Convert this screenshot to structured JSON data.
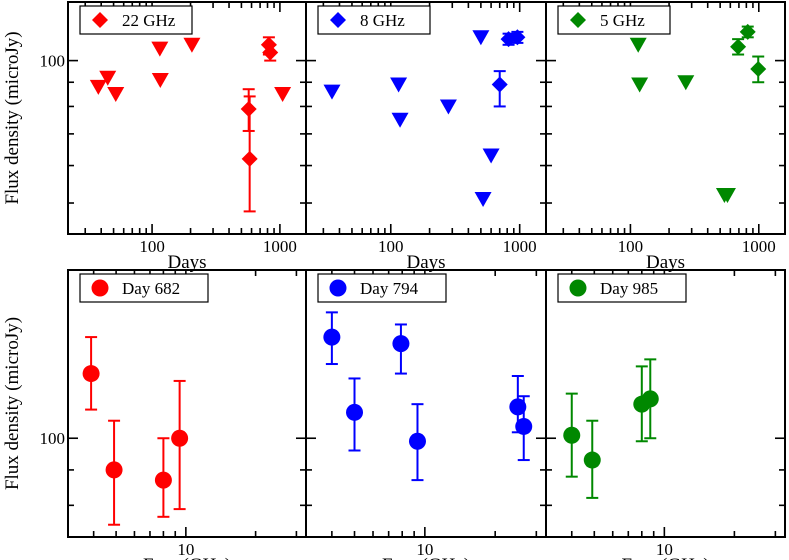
{
  "chart_data": [
    {
      "type": "scatter",
      "xscale": "log",
      "yscale": "log",
      "xlim": [
        22,
        1600
      ],
      "ylim": [
        43,
        133
      ],
      "xlabel": "Days",
      "ylabel": "Flux density (microJy)",
      "xticks": [
        100,
        1000
      ],
      "xtick_labels": [
        "100",
        "1000"
      ],
      "yticks": [
        100
      ],
      "ytick_labels": [
        "100"
      ],
      "legend": "22 GHz",
      "color": "#ff0000",
      "upper_limits": [
        [
          38,
          88
        ],
        [
          45,
          92
        ],
        [
          52,
          85
        ],
        [
          115,
          106
        ],
        [
          116,
          91
        ],
        [
          205,
          108
        ],
        [
          1050,
          85
        ]
      ],
      "detections": [
        [
          570,
          79,
          87,
          71
        ],
        [
          580,
          62,
          84,
          48
        ],
        [
          820,
          108,
          112,
          103
        ],
        [
          840,
          104,
          108,
          100
        ]
      ]
    },
    {
      "type": "scatter",
      "xscale": "log",
      "yscale": "log",
      "xlim": [
        22,
        1600
      ],
      "ylim": [
        43,
        133
      ],
      "xlabel": "Days",
      "ylabel": "",
      "xticks": [
        100,
        1000
      ],
      "xtick_labels": [
        "100",
        "1000"
      ],
      "yticks": [
        100
      ],
      "ytick_labels": [
        ""
      ],
      "legend": "8 GHz",
      "color": "#0000ff",
      "upper_limits": [
        [
          35,
          86
        ],
        [
          115,
          89
        ],
        [
          118,
          75
        ],
        [
          280,
          80
        ],
        [
          500,
          112
        ],
        [
          520,
          51
        ],
        [
          600,
          63
        ]
      ],
      "detections": [
        [
          700,
          89,
          95,
          80
        ],
        [
          820,
          111,
          114,
          108
        ],
        [
          960,
          112,
          115,
          109
        ]
      ]
    },
    {
      "type": "scatter",
      "xscale": "log",
      "yscale": "log",
      "xlim": [
        22,
        1600
      ],
      "ylim": [
        43,
        133
      ],
      "xlabel": "Days",
      "ylabel": "",
      "xticks": [
        100,
        1000
      ],
      "xtick_labels": [
        "100",
        "1000"
      ],
      "yticks": [
        100
      ],
      "ytick_labels": [
        ""
      ],
      "legend": "5 GHz",
      "color": "#008800",
      "upper_limits": [
        [
          115,
          108
        ],
        [
          118,
          89
        ],
        [
          270,
          90
        ],
        [
          540,
          52
        ],
        [
          570,
          52
        ]
      ],
      "detections": [
        [
          690,
          107,
          111,
          103
        ],
        [
          820,
          115,
          118,
          112
        ],
        [
          990,
          96,
          102,
          90
        ]
      ]
    },
    {
      "type": "scatter",
      "xscale": "log",
      "yscale": "log",
      "xlim": [
        3.1,
        33
      ],
      "ylim": [
        72,
        175
      ],
      "xlabel": "Freq (GHz)",
      "ylabel": "Flux density (microJy)",
      "xticks": [
        10
      ],
      "xtick_labels": [
        "10"
      ],
      "yticks": [
        100
      ],
      "ytick_labels": [
        "100"
      ],
      "legend": "Day 682",
      "color": "#ff0000",
      "detections": [
        [
          3.9,
          124,
          140,
          110
        ],
        [
          4.9,
          90,
          106,
          75
        ],
        [
          8.0,
          87,
          100,
          77
        ],
        [
          9.4,
          100,
          121,
          79
        ]
      ]
    },
    {
      "type": "scatter",
      "xscale": "log",
      "yscale": "log",
      "xlim": [
        3.1,
        33
      ],
      "ylim": [
        72,
        175
      ],
      "xlabel": "Freq (GHz)",
      "ylabel": "",
      "xticks": [
        10
      ],
      "xtick_labels": [
        "10"
      ],
      "yticks": [
        100
      ],
      "ytick_labels": [
        ""
      ],
      "legend": "Day 794",
      "color": "#0000ff",
      "detections": [
        [
          4.0,
          140,
          152,
          128
        ],
        [
          5.0,
          109,
          122,
          96
        ],
        [
          7.9,
          137,
          146,
          124
        ],
        [
          9.3,
          99,
          112,
          87
        ],
        [
          25.0,
          111,
          123,
          102
        ],
        [
          26.5,
          104,
          115,
          93
        ]
      ]
    },
    {
      "type": "scatter",
      "xscale": "log",
      "yscale": "log",
      "xlim": [
        3.1,
        33
      ],
      "ylim": [
        72,
        175
      ],
      "xlabel": "Freq (GHz)",
      "ylabel": "",
      "xticks": [
        10
      ],
      "xtick_labels": [
        "10"
      ],
      "yticks": [
        100
      ],
      "ytick_labels": [
        ""
      ],
      "legend": "Day 985",
      "color": "#008800",
      "detections": [
        [
          4.0,
          101,
          116,
          88
        ],
        [
          4.9,
          93,
          106,
          82
        ],
        [
          8.0,
          112,
          127,
          99
        ],
        [
          8.7,
          114,
          130,
          100
        ]
      ]
    }
  ]
}
